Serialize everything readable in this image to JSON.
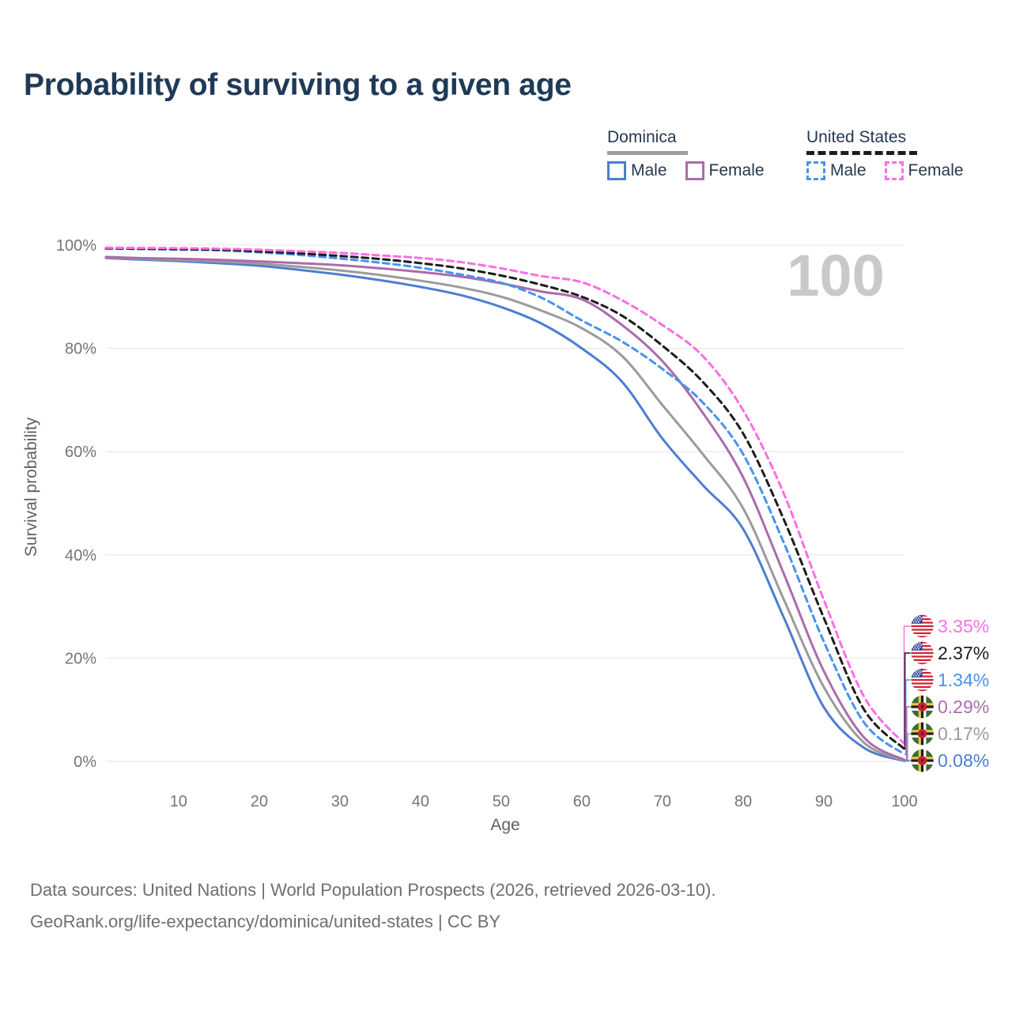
{
  "title": "Probability of surviving to a given age",
  "legend": {
    "dominica": {
      "label": "Dominica",
      "male": "Male",
      "female": "Female"
    },
    "united_states": {
      "label": "United States",
      "male": "Male",
      "female": "Female"
    }
  },
  "footer": {
    "line1": "Data sources: United Nations | World Population Prospects (2026, retrieved 2026-03-10).",
    "line2": "GeoRank.org/life-expectancy/dominica/united-states | CC BY"
  },
  "colors": {
    "title_text": "#1f3a57",
    "legend_text": "#24384f",
    "axis_text": "#757575",
    "gridline": "#e4e4e4",
    "watermark": "#c9c9c9",
    "dominica_male": "#4d7dd0",
    "dominica_female": "#ab6cab",
    "dominica_total": "#9b9b9b",
    "us_male": "#4693f0",
    "us_female": "#fb6fe3",
    "us_total": "#1c1c1c"
  },
  "chart_data": {
    "type": "line",
    "title": "Probability of surviving to a given age",
    "xlabel": "Age",
    "ylabel": "Survival probability",
    "xlim": [
      1,
      100
    ],
    "ylim": [
      0,
      100
    ],
    "grid": "horizontal",
    "legend_position": "top-right",
    "watermark": "100",
    "x_ticks": [
      10,
      20,
      30,
      40,
      50,
      60,
      70,
      80,
      90,
      100
    ],
    "y_ticks": [
      0,
      20,
      40,
      60,
      80,
      100
    ],
    "y_tick_suffix": "%",
    "ages": [
      1,
      5,
      10,
      15,
      20,
      25,
      30,
      35,
      40,
      45,
      50,
      55,
      60,
      65,
      70,
      75,
      80,
      85,
      90,
      95,
      100
    ],
    "series": [
      {
        "id": "dominica-male",
        "name": "Dominica Male",
        "country": "Dominica",
        "sex": "Male",
        "line_style": "solid",
        "color": "#4d7dd0",
        "flag": "dm",
        "end_value": 0.08,
        "end_label": "0.08%",
        "values": [
          97.5,
          97.2,
          96.9,
          96.5,
          96.0,
          95.2,
          94.3,
          93.2,
          91.9,
          90.3,
          88.0,
          84.8,
          80.0,
          73.5,
          62.5,
          53.5,
          45.0,
          28.0,
          10.5,
          2.6,
          0.08
        ]
      },
      {
        "id": "dominica-total",
        "name": "Dominica Total",
        "country": "Dominica",
        "sex": "Both",
        "line_style": "solid",
        "color": "#9b9b9b",
        "flag": "dm",
        "end_value": 0.17,
        "end_label": "0.17%",
        "values": [
          97.6,
          97.35,
          97.1,
          96.8,
          96.4,
          95.8,
          95.1,
          94.2,
          93.1,
          91.8,
          90.0,
          87.3,
          83.9,
          78.5,
          69.0,
          59.5,
          49.0,
          31.5,
          14.4,
          3.6,
          0.17
        ]
      },
      {
        "id": "dominica-female",
        "name": "Dominica Female",
        "country": "Dominica",
        "sex": "Female",
        "line_style": "solid",
        "color": "#ab6cab",
        "flag": "dm",
        "end_value": 0.29,
        "end_label": "0.29%",
        "values": [
          97.7,
          97.5,
          97.35,
          97.15,
          96.85,
          96.5,
          96.1,
          95.5,
          94.8,
          93.9,
          92.6,
          91.0,
          89.5,
          84.5,
          77.5,
          67.5,
          55.0,
          36.5,
          17.5,
          4.6,
          0.29
        ]
      },
      {
        "id": "us-male",
        "name": "United States Male",
        "country": "United States",
        "sex": "Male",
        "line_style": "dashed",
        "color": "#4693f0",
        "flag": "us",
        "end_value": 1.34,
        "end_label": "1.34%",
        "values": [
          99.3,
          99.25,
          99.15,
          99.0,
          98.6,
          98.1,
          97.4,
          96.6,
          95.6,
          94.3,
          92.7,
          89.8,
          85.4,
          81.3,
          76.0,
          69.5,
          59.5,
          42.5,
          23.2,
          7.5,
          1.34
        ]
      },
      {
        "id": "us-total",
        "name": "United States Total",
        "country": "United States",
        "sex": "Both",
        "line_style": "dashed",
        "color": "#1c1c1c",
        "flag": "us",
        "end_value": 2.37,
        "end_label": "2.37%",
        "values": [
          99.4,
          99.3,
          99.2,
          99.1,
          98.8,
          98.4,
          97.9,
          97.3,
          96.5,
          95.5,
          94.1,
          92.3,
          90.0,
          86.3,
          80.5,
          73.5,
          63.5,
          47.0,
          27.8,
          10.0,
          2.37
        ]
      },
      {
        "id": "us-female",
        "name": "United States Female",
        "country": "United States",
        "sex": "Female",
        "line_style": "dashed",
        "color": "#fb6fe3",
        "flag": "us",
        "end_value": 3.35,
        "end_label": "3.35%",
        "values": [
          99.5,
          99.45,
          99.4,
          99.3,
          99.1,
          98.8,
          98.5,
          98.0,
          97.5,
          96.7,
          95.5,
          94.0,
          92.8,
          89.3,
          84.5,
          78.5,
          68.0,
          52.0,
          31.3,
          12.5,
          3.35
        ]
      }
    ]
  }
}
